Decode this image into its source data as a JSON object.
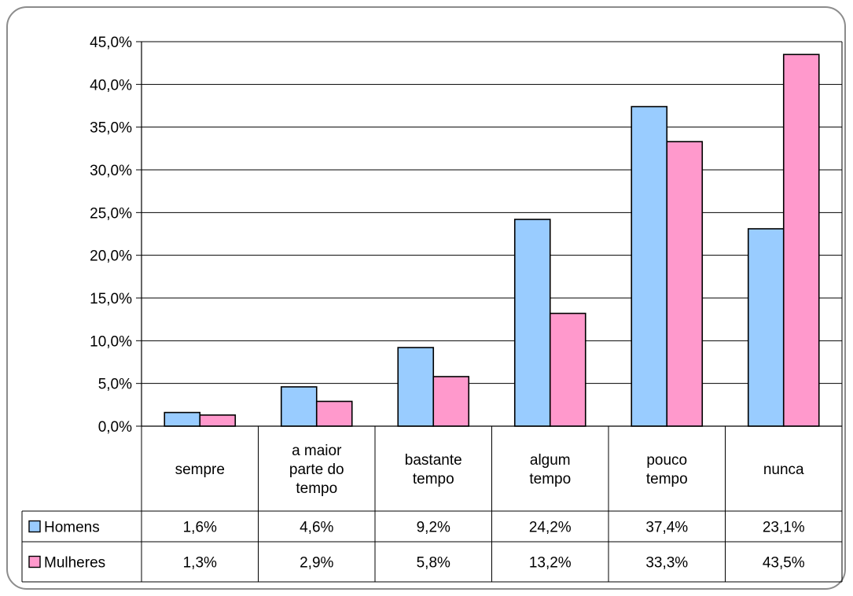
{
  "chart_data": {
    "type": "bar",
    "categories": [
      "sempre",
      "a maior parte do tempo",
      "bastante tempo",
      "algum tempo",
      "pouco tempo",
      "nunca"
    ],
    "category_lines": [
      [
        "sempre"
      ],
      [
        "a maior",
        "parte do",
        "tempo"
      ],
      [
        "bastante",
        "tempo"
      ],
      [
        "algum",
        "tempo"
      ],
      [
        "pouco",
        "tempo"
      ],
      [
        "nunca"
      ]
    ],
    "series": [
      {
        "name": "Homens",
        "values": [
          1.6,
          4.6,
          9.2,
          24.2,
          37.4,
          23.1
        ],
        "labels": [
          "1,6%",
          "4,6%",
          "9,2%",
          "24,2%",
          "37,4%",
          "23,1%"
        ],
        "color": "#99ccff"
      },
      {
        "name": "Mulheres",
        "values": [
          1.3,
          2.9,
          5.8,
          13.2,
          33.3,
          43.5
        ],
        "labels": [
          "1,3%",
          "2,9%",
          "5,8%",
          "13,2%",
          "33,3%",
          "43,5%"
        ],
        "color": "#ff99cc"
      }
    ],
    "yticks": [
      "0,0%",
      "5,0%",
      "10,0%",
      "15,0%",
      "20,0%",
      "25,0%",
      "30,0%",
      "35,0%",
      "40,0%",
      "45,0%"
    ],
    "ylim": [
      0,
      45
    ],
    "grid": true,
    "legend": "data-table"
  }
}
